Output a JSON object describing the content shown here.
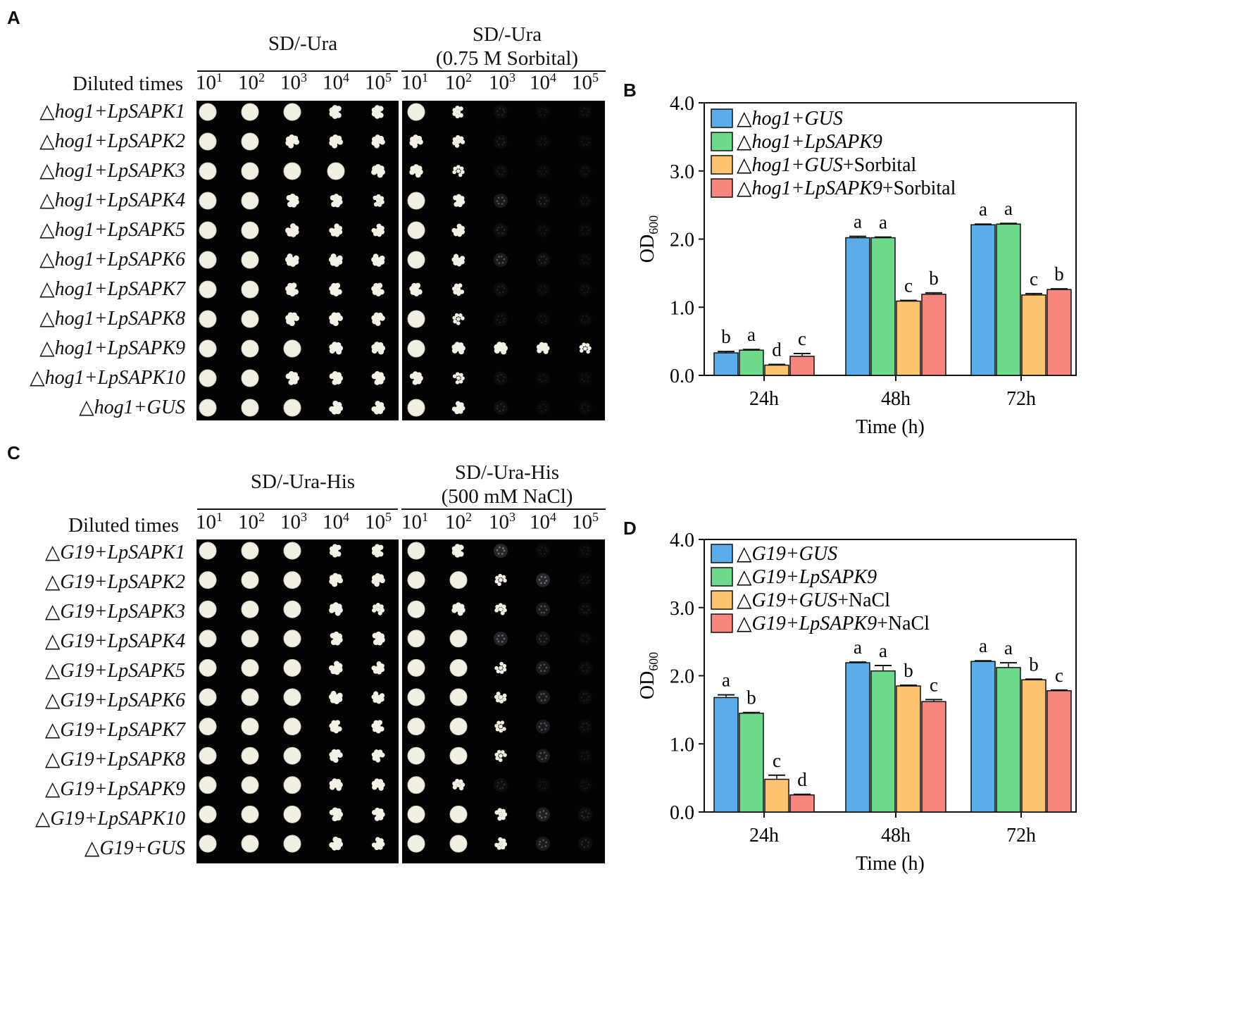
{
  "panel_a": {
    "letter": "A",
    "left_medium": "SD/-Ura",
    "right_medium_line1": "SD/-Ura",
    "right_medium_line2": "(0.75 M Sorbital)",
    "diluted_label": "Diluted times",
    "dilutions": [
      {
        "base": "10",
        "exp": "1"
      },
      {
        "base": "10",
        "exp": "2"
      },
      {
        "base": "10",
        "exp": "3"
      },
      {
        "base": "10",
        "exp": "4"
      },
      {
        "base": "10",
        "exp": "5"
      }
    ],
    "strains": [
      "△hog1+LpSAPK1",
      "△hog1+LpSAPK2",
      "△hog1+LpSAPK3",
      "△hog1+LpSAPK4",
      "△hog1+LpSAPK5",
      "△hog1+LpSAPK6",
      "△hog1+LpSAPK7",
      "△hog1+LpSAPK8",
      "△hog1+LpSAPK9",
      "△hog1+LpSAPK10",
      "△hog1+GUS"
    ],
    "growth_left": [
      [
        1,
        1,
        0.9,
        0.85,
        0.8
      ],
      [
        1,
        0.9,
        0.85,
        0.85,
        0.8
      ],
      [
        1,
        0.9,
        0.9,
        0.9,
        0.85
      ],
      [
        1,
        0.9,
        0.85,
        0.8,
        0.6
      ],
      [
        1,
        0.9,
        0.85,
        0.75,
        0.7
      ],
      [
        1,
        0.9,
        0.85,
        0.85,
        0.8
      ],
      [
        1,
        0.9,
        0.85,
        0.8,
        0.8
      ],
      [
        1,
        0.9,
        0.85,
        0.85,
        0.8
      ],
      [
        1,
        0.9,
        0.9,
        0.85,
        0.85
      ],
      [
        1,
        0.9,
        0.85,
        0.85,
        0.85
      ],
      [
        1,
        1,
        0.9,
        0.85,
        0.8
      ]
    ],
    "growth_right": [
      [
        0.9,
        0.6,
        0.12,
        0.05,
        0.03
      ],
      [
        0.8,
        0.6,
        0.12,
        0.06,
        0.05
      ],
      [
        0.8,
        0.5,
        0.1,
        0.05,
        0.03
      ],
      [
        0.9,
        0.7,
        0.3,
        0.15,
        0.05
      ],
      [
        0.9,
        0.7,
        0.15,
        0.08,
        0.05
      ],
      [
        0.9,
        0.7,
        0.3,
        0.15,
        0.05
      ],
      [
        0.8,
        0.6,
        0.12,
        0.05,
        0.03
      ],
      [
        0.9,
        0.5,
        0.1,
        0.05,
        0.02
      ],
      [
        0.9,
        0.8,
        0.85,
        0.7,
        0.5
      ],
      [
        0.8,
        0.5,
        0.12,
        0.05,
        0.02
      ],
      [
        0.9,
        0.7,
        0.15,
        0.05,
        0.03
      ]
    ]
  },
  "panel_c": {
    "letter": "C",
    "left_medium": "SD/-Ura-His",
    "right_medium_line1": "SD/-Ura-His",
    "right_medium_line2": "(500 mM NaCl)",
    "diluted_label": "Diluted times",
    "dilutions": [
      {
        "base": "10",
        "exp": "1"
      },
      {
        "base": "10",
        "exp": "2"
      },
      {
        "base": "10",
        "exp": "3"
      },
      {
        "base": "10",
        "exp": "4"
      },
      {
        "base": "10",
        "exp": "5"
      }
    ],
    "strains": [
      "△G19+LpSAPK1",
      "△G19+LpSAPK2",
      "△G19+LpSAPK3",
      "△G19+LpSAPK4",
      "△G19+LpSAPK5",
      "△G19+LpSAPK6",
      "△G19+LpSAPK7",
      "△G19+LpSAPK8",
      "△G19+LpSAPK9",
      "△G19+LpSAPK10",
      "△G19+GUS"
    ],
    "growth_left": [
      [
        1,
        1,
        0.9,
        0.75,
        0.75
      ],
      [
        1,
        1,
        0.9,
        0.85,
        0.8
      ],
      [
        1,
        1,
        0.9,
        0.85,
        0.6
      ],
      [
        1,
        1,
        0.9,
        0.85,
        0.85
      ],
      [
        1,
        1,
        0.9,
        0.85,
        0.7
      ],
      [
        1,
        1,
        0.95,
        0.85,
        0.7
      ],
      [
        1,
        1,
        0.9,
        0.75,
        0.75
      ],
      [
        1,
        1,
        0.9,
        0.8,
        0.7
      ],
      [
        1,
        1,
        0.95,
        0.8,
        0.75
      ],
      [
        1,
        1,
        0.9,
        0.85,
        0.75
      ],
      [
        1,
        1,
        0.95,
        0.85,
        0.7
      ]
    ],
    "growth_right": [
      [
        0.9,
        0.8,
        0.45,
        0.1,
        0.05
      ],
      [
        1,
        0.9,
        0.5,
        0.45,
        0.1
      ],
      [
        0.9,
        0.8,
        0.55,
        0.3,
        0.1
      ],
      [
        1,
        0.9,
        0.4,
        0.2,
        0.05
      ],
      [
        1,
        0.9,
        0.5,
        0.3,
        0.1
      ],
      [
        1,
        0.9,
        0.55,
        0.3,
        0.1
      ],
      [
        1,
        0.9,
        0.5,
        0.3,
        0.1
      ],
      [
        1,
        0.9,
        0.5,
        0.3,
        0.05
      ],
      [
        0.9,
        0.6,
        0.15,
        0.05,
        0.02
      ],
      [
        1,
        0.9,
        0.6,
        0.35,
        0.15
      ],
      [
        1,
        0.9,
        0.6,
        0.3,
        0.15
      ]
    ]
  },
  "chart_data": [
    {
      "panel_letter": "B",
      "type": "bar",
      "xlabel": "Time (h)",
      "ylabel": "OD",
      "ylabel_sub": "600",
      "ylim": [
        0,
        4.0
      ],
      "yticks": [
        "0.0",
        "1.0",
        "2.0",
        "3.0",
        "4.0"
      ],
      "categories": [
        "24h",
        "48h",
        "72h"
      ],
      "legend_position": "top-left",
      "series": [
        {
          "name_italic": "△hog1+GUS",
          "name_plain": "",
          "color": "#5aade8",
          "values": [
            0.33,
            2.02,
            2.21
          ],
          "errors": [
            0.02,
            0.02,
            0.01
          ],
          "letters": [
            "b",
            "a",
            "a"
          ]
        },
        {
          "name_italic": "△hog1+LpSAPK9",
          "name_plain": "",
          "color": "#6dda8b",
          "values": [
            0.37,
            2.02,
            2.22
          ],
          "errors": [
            0.01,
            0.01,
            0.01
          ],
          "letters": [
            "a",
            "a",
            "a"
          ]
        },
        {
          "name_italic": "△hog1+GUS",
          "name_plain": "+Sorbital",
          "color": "#fdc46e",
          "values": [
            0.15,
            1.09,
            1.18
          ],
          "errors": [
            0.01,
            0.01,
            0.02
          ],
          "letters": [
            "d",
            "c",
            "c"
          ]
        },
        {
          "name_italic": "△hog1+LpSAPK9",
          "name_plain": "+Sorbital",
          "color": "#f6857d",
          "values": [
            0.28,
            1.19,
            1.26
          ],
          "errors": [
            0.04,
            0.02,
            0.01
          ],
          "letters": [
            "c",
            "b",
            "b"
          ]
        }
      ]
    },
    {
      "panel_letter": "D",
      "type": "bar",
      "xlabel": "Time (h)",
      "ylabel": "OD",
      "ylabel_sub": "600",
      "ylim": [
        0,
        4.0
      ],
      "yticks": [
        "0.0",
        "1.0",
        "2.0",
        "3.0",
        "4.0"
      ],
      "categories": [
        "24h",
        "48h",
        "72h"
      ],
      "legend_position": "top-left",
      "series": [
        {
          "name_italic": "△G19+GUS",
          "name_plain": "",
          "color": "#5aade8",
          "values": [
            1.68,
            2.19,
            2.21
          ],
          "errors": [
            0.04,
            0.01,
            0.01
          ],
          "letters": [
            "a",
            "a",
            "a"
          ]
        },
        {
          "name_italic": "△G19+LpSAPK9",
          "name_plain": "",
          "color": "#6dda8b",
          "values": [
            1.45,
            2.07,
            2.12
          ],
          "errors": [
            0.01,
            0.08,
            0.07
          ],
          "letters": [
            "b",
            "a",
            "a"
          ]
        },
        {
          "name_italic": "△G19+GUS",
          "name_plain": "+NaCl",
          "color": "#fdc46e",
          "values": [
            0.48,
            1.85,
            1.94
          ],
          "errors": [
            0.06,
            0.01,
            0.01
          ],
          "letters": [
            "c",
            "b",
            "b"
          ]
        },
        {
          "name_italic": "△G19+LpSAPK9",
          "name_plain": "+NaCl",
          "color": "#f6857d",
          "values": [
            0.25,
            1.62,
            1.78
          ],
          "errors": [
            0.01,
            0.03,
            0.01
          ],
          "letters": [
            "d",
            "c",
            "c"
          ]
        }
      ]
    }
  ]
}
